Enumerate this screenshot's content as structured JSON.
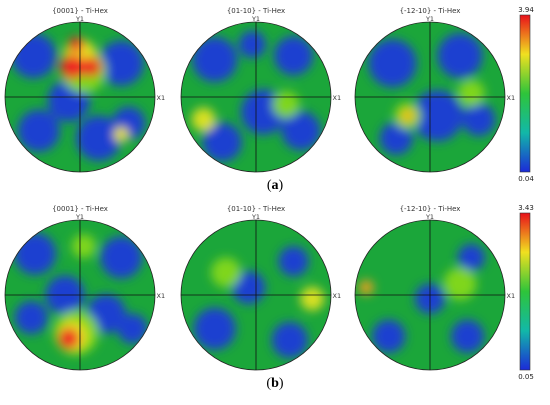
{
  "rows": [
    {
      "caption": "a",
      "poles": [
        {
          "title": "{0001} - Ti-Hex",
          "y_label": "Y1",
          "x_label": "X1",
          "base": "#1ba63a",
          "blobs": [
            {
              "u": -0.62,
              "v": -0.55,
              "r": 0.3,
              "color": "#1f3fd0"
            },
            {
              "u": 0.55,
              "v": -0.45,
              "r": 0.3,
              "color": "#1f3fd0"
            },
            {
              "u": -0.15,
              "v": 0.05,
              "r": 0.28,
              "color": "#1f3fd0"
            },
            {
              "u": 0.25,
              "v": 0.55,
              "r": 0.3,
              "color": "#1f3fd0"
            },
            {
              "u": -0.55,
              "v": 0.45,
              "r": 0.28,
              "color": "#1f3fd0"
            },
            {
              "u": 0.65,
              "v": 0.35,
              "r": 0.22,
              "color": "#1f3fd0"
            },
            {
              "u": 0.05,
              "v": -0.35,
              "r": 0.3,
              "color": "#7fd61a"
            },
            {
              "u": 0.0,
              "v": -0.55,
              "r": 0.22,
              "color": "#e6e020"
            },
            {
              "u": -0.1,
              "v": -0.4,
              "r": 0.16,
              "color": "#ee2020"
            },
            {
              "u": 0.15,
              "v": -0.4,
              "r": 0.13,
              "color": "#ee2020"
            },
            {
              "u": 0.55,
              "v": 0.5,
              "r": 0.1,
              "color": "#e6e020"
            },
            {
              "u": -0.05,
              "v": -0.7,
              "r": 0.1,
              "color": "#ee2020"
            }
          ]
        },
        {
          "title": "{01-10} - Ti-Hex",
          "y_label": "Y1",
          "x_label": "X1",
          "base": "#1ba63a",
          "blobs": [
            {
              "u": -0.55,
              "v": -0.5,
              "r": 0.3,
              "color": "#1f3fd0"
            },
            {
              "u": 0.5,
              "v": -0.55,
              "r": 0.26,
              "color": "#1f3fd0"
            },
            {
              "u": 0.1,
              "v": 0.2,
              "r": 0.3,
              "color": "#1f3fd0"
            },
            {
              "u": -0.45,
              "v": 0.6,
              "r": 0.26,
              "color": "#1f3fd0"
            },
            {
              "u": 0.6,
              "v": 0.45,
              "r": 0.26,
              "color": "#1f3fd0"
            },
            {
              "u": -0.05,
              "v": -0.7,
              "r": 0.18,
              "color": "#1f3fd0"
            },
            {
              "u": -0.7,
              "v": 0.3,
              "r": 0.16,
              "color": "#d8e020"
            },
            {
              "u": 0.4,
              "v": 0.1,
              "r": 0.18,
              "color": "#7fd61a"
            }
          ]
        },
        {
          "title": "{-12-10} - Ti-Hex",
          "y_label": "Y1",
          "x_label": "X1",
          "base": "#1ba63a",
          "blobs": [
            {
              "u": -0.5,
              "v": -0.45,
              "r": 0.32,
              "color": "#1f3fd0"
            },
            {
              "u": 0.4,
              "v": -0.55,
              "r": 0.3,
              "color": "#1f3fd0"
            },
            {
              "u": 0.1,
              "v": 0.25,
              "r": 0.34,
              "color": "#1f3fd0"
            },
            {
              "u": -0.45,
              "v": 0.55,
              "r": 0.22,
              "color": "#1f3fd0"
            },
            {
              "u": 0.65,
              "v": 0.3,
              "r": 0.22,
              "color": "#1f3fd0"
            },
            {
              "u": -0.3,
              "v": 0.25,
              "r": 0.18,
              "color": "#7fd61a"
            },
            {
              "u": -0.3,
              "v": 0.25,
              "r": 0.1,
              "color": "#e6c020"
            },
            {
              "u": 0.55,
              "v": -0.05,
              "r": 0.18,
              "color": "#7fd61a"
            }
          ]
        }
      ],
      "colorbar": {
        "max": "3.94",
        "min": "0.04"
      }
    },
    {
      "caption": "b",
      "poles": [
        {
          "title": "{0001} - Ti-Hex",
          "y_label": "Y1",
          "x_label": "X1",
          "base": "#1ba63a",
          "blobs": [
            {
              "u": -0.6,
              "v": -0.55,
              "r": 0.28,
              "color": "#1f3fd0"
            },
            {
              "u": 0.55,
              "v": -0.5,
              "r": 0.28,
              "color": "#1f3fd0"
            },
            {
              "u": -0.2,
              "v": 0.0,
              "r": 0.26,
              "color": "#1f3fd0"
            },
            {
              "u": 0.35,
              "v": 0.25,
              "r": 0.26,
              "color": "#1f3fd0"
            },
            {
              "u": -0.65,
              "v": 0.3,
              "r": 0.22,
              "color": "#1f3fd0"
            },
            {
              "u": 0.7,
              "v": 0.45,
              "r": 0.2,
              "color": "#1f3fd0"
            },
            {
              "u": -0.05,
              "v": 0.5,
              "r": 0.3,
              "color": "#7fd61a"
            },
            {
              "u": -0.1,
              "v": 0.55,
              "r": 0.2,
              "color": "#e6e020"
            },
            {
              "u": -0.15,
              "v": 0.58,
              "r": 0.14,
              "color": "#ee2020"
            },
            {
              "u": 0.05,
              "v": -0.65,
              "r": 0.16,
              "color": "#7fd61a"
            }
          ]
        },
        {
          "title": "{01-10} - Ti-Hex",
          "y_label": "Y1",
          "x_label": "X1",
          "base": "#1ba63a",
          "blobs": [
            {
              "u": -0.55,
              "v": 0.45,
              "r": 0.28,
              "color": "#1f3fd0"
            },
            {
              "u": 0.45,
              "v": 0.6,
              "r": 0.24,
              "color": "#1f3fd0"
            },
            {
              "u": -0.1,
              "v": -0.1,
              "r": 0.22,
              "color": "#1f3fd0"
            },
            {
              "u": 0.5,
              "v": -0.45,
              "r": 0.2,
              "color": "#1f3fd0"
            },
            {
              "u": 0.75,
              "v": 0.05,
              "r": 0.16,
              "color": "#d8e020"
            },
            {
              "u": -0.4,
              "v": -0.3,
              "r": 0.2,
              "color": "#7fd61a"
            }
          ]
        },
        {
          "title": "{-12-10} - Ti-Hex",
          "y_label": "Y1",
          "x_label": "X1",
          "base": "#1ba63a",
          "blobs": [
            {
              "u": 0.0,
              "v": 0.05,
              "r": 0.2,
              "color": "#1f3fd0"
            },
            {
              "u": -0.55,
              "v": 0.55,
              "r": 0.22,
              "color": "#1f3fd0"
            },
            {
              "u": 0.5,
              "v": 0.55,
              "r": 0.22,
              "color": "#1f3fd0"
            },
            {
              "u": 0.55,
              "v": -0.5,
              "r": 0.18,
              "color": "#1f3fd0"
            },
            {
              "u": -0.85,
              "v": -0.1,
              "r": 0.1,
              "color": "#e6a020"
            },
            {
              "u": 0.4,
              "v": -0.15,
              "r": 0.22,
              "color": "#7fd61a"
            }
          ]
        }
      ],
      "colorbar": {
        "max": "3.43",
        "min": "0.05"
      }
    }
  ]
}
